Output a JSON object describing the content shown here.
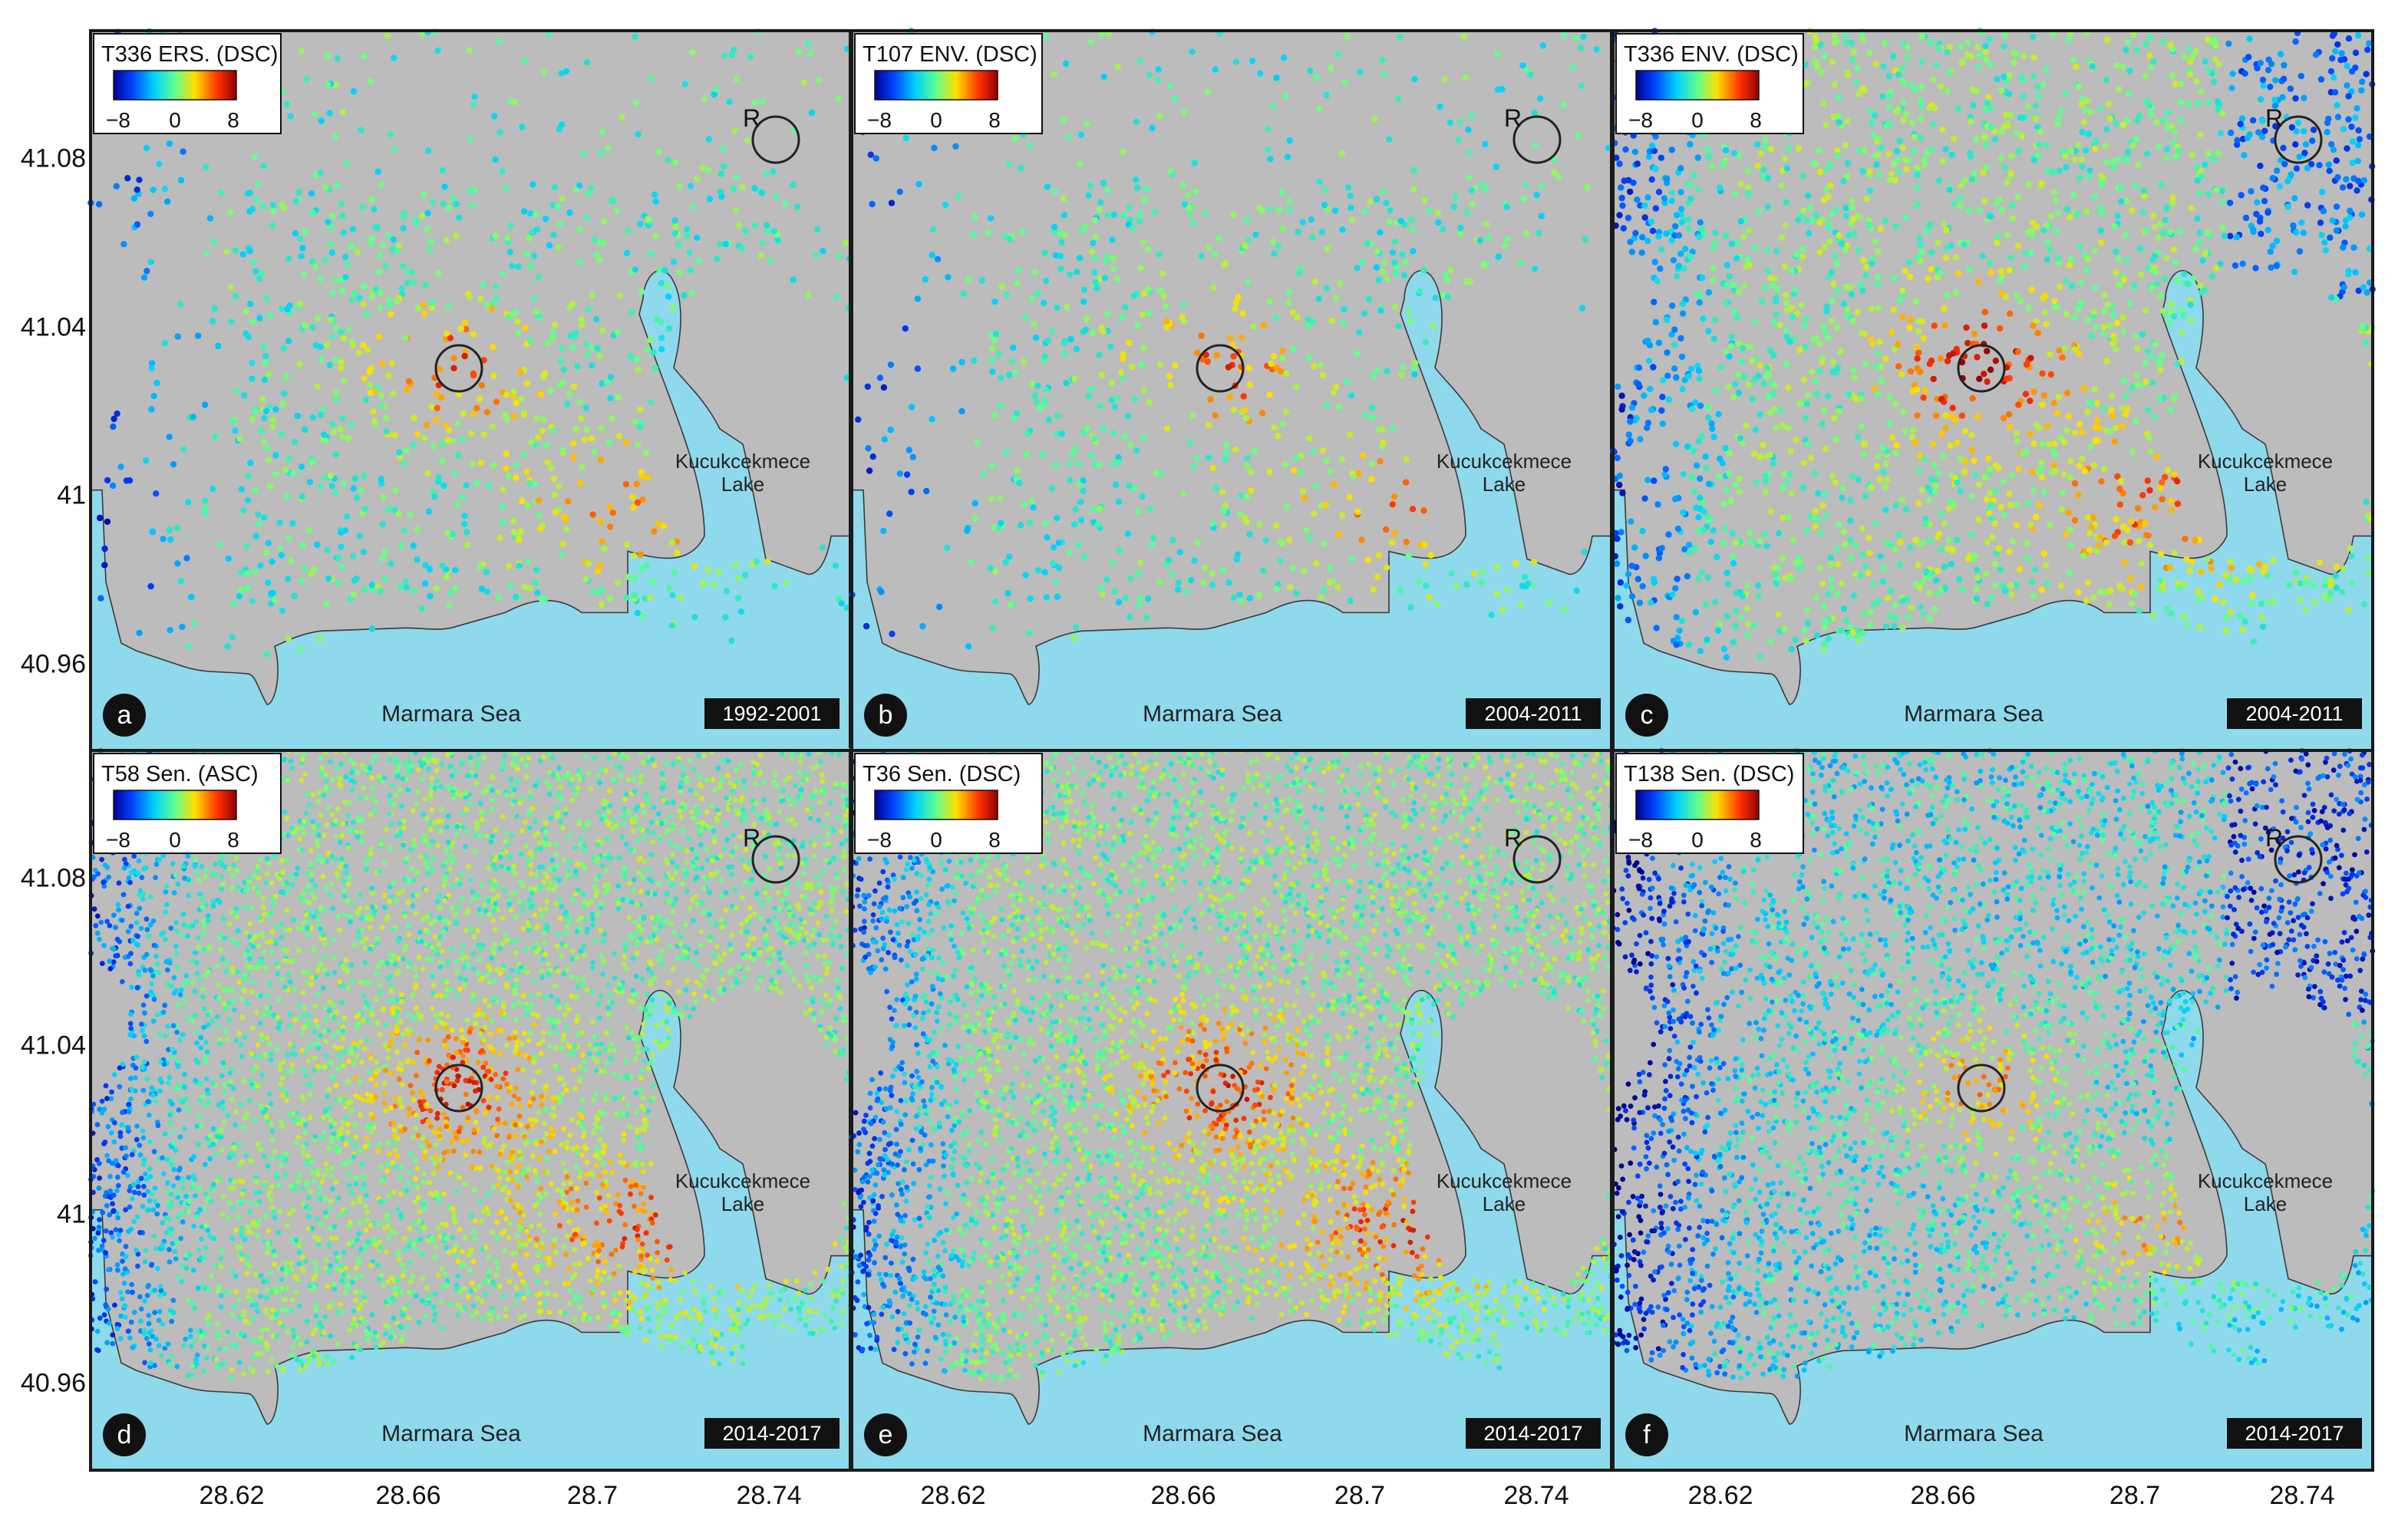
{
  "figure": {
    "y_ticks": [
      "41.08",
      "41.04",
      "41",
      "40.96"
    ],
    "x_ticks": [
      "28.62",
      "28.66",
      "28.7",
      "28.74"
    ],
    "lake_label_line1": "Kucukcekmece",
    "lake_label_line2": "Lake",
    "sea_label": "Marmara Sea",
    "reference_label": "R",
    "colorbar": {
      "min_label": "−8",
      "mid_label": "0",
      "max_label": "8"
    },
    "colors": {
      "land": "#bcbcbd",
      "water": "#8fd9ec",
      "coast": "#3a3a3a",
      "frame": "#1a1a1a"
    }
  },
  "panels": [
    {
      "letter": "a",
      "title": "T336 ERS. (DSC)",
      "period": "1992-2001"
    },
    {
      "letter": "b",
      "title": "T107 ENV. (DSC)",
      "period": "2004-2011"
    },
    {
      "letter": "c",
      "title": "T336 ENV. (DSC)",
      "period": "2004-2011"
    },
    {
      "letter": "d",
      "title": "T58 Sen. (ASC)",
      "period": "2014-2017"
    },
    {
      "letter": "e",
      "title": "T36 Sen. (DSC)",
      "period": "2014-2017"
    },
    {
      "letter": "f",
      "title": "T138 Sen. (DSC)",
      "period": "2014-2017"
    }
  ]
}
